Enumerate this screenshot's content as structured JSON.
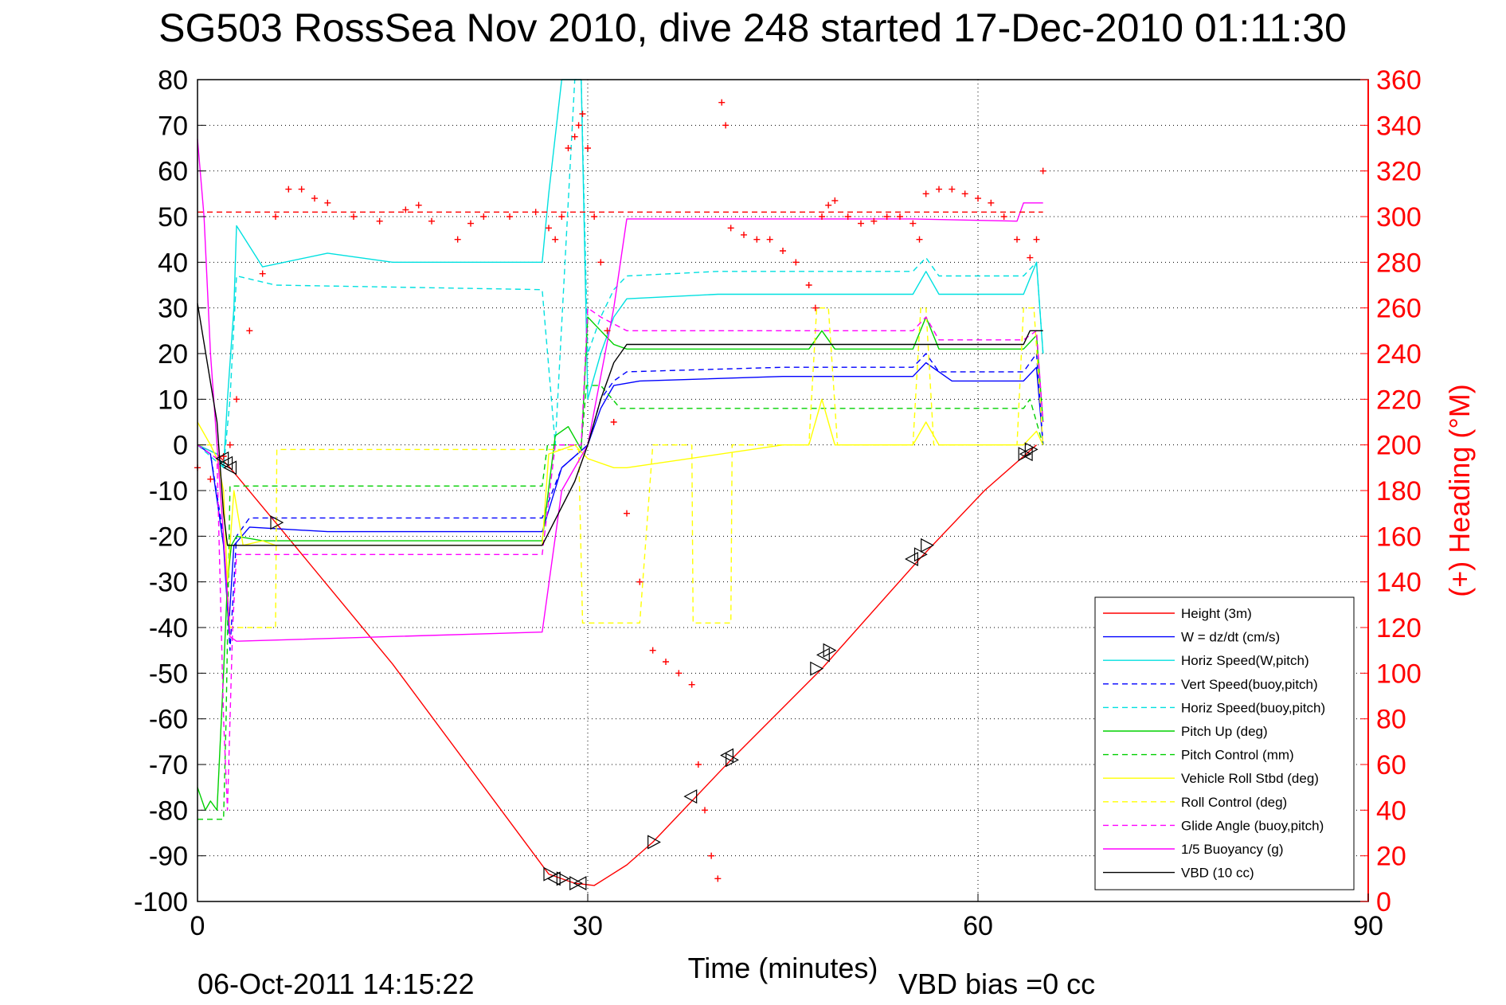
{
  "chart_data": {
    "type": "line",
    "title": "SG503 RossSea Nov 2010, dive 248 started 17-Dec-2010 01:11:30",
    "xlabel": "Time (minutes)",
    "ylabel": "",
    "y2label": "(+) Heading (°M)",
    "xlim": [
      0,
      90
    ],
    "ylim": [
      -100,
      80
    ],
    "y2lim": [
      0,
      360
    ],
    "xticks": [
      0,
      30,
      60,
      90
    ],
    "yticks": [
      80,
      70,
      60,
      50,
      40,
      30,
      20,
      10,
      0,
      -10,
      -20,
      -30,
      -40,
      -50,
      -60,
      -70,
      -80,
      -90,
      -100
    ],
    "y2ticks": [
      360,
      340,
      320,
      300,
      280,
      260,
      240,
      220,
      200,
      180,
      160,
      140,
      120,
      100,
      80,
      60,
      40,
      20,
      0
    ],
    "grid": true,
    "legend_position": "bottom-right",
    "footer_left": "06-Oct-2011 14:15:22",
    "footer_right": "VBD bias =0 cc",
    "series": [
      {
        "name": "Height (3m)",
        "color": "#ff0000",
        "style": "solid",
        "x": [
          0,
          1.5,
          2.5,
          6,
          15,
          27,
          29,
          30.5,
          33,
          35,
          41,
          48,
          55.5,
          60.5,
          63.5,
          64.5
        ],
        "y": [
          0,
          -2,
          -5,
          -17,
          -48,
          -94,
          -96,
          -96.5,
          -92,
          -87,
          -69,
          -49,
          -25,
          -10,
          -2.5,
          0
        ]
      },
      {
        "name": "W = dz/dt (cm/s)",
        "color": "#0000ff",
        "style": "solid",
        "x": [
          0,
          1,
          2,
          2.4,
          2.8,
          4,
          10,
          20,
          26.5,
          28,
          30,
          31,
          32,
          34,
          45,
          55,
          56,
          58,
          63.5,
          64.5,
          65
        ],
        "y": [
          0,
          -2,
          -22,
          -40,
          -22,
          -18,
          -19,
          -19,
          -19,
          -5,
          0,
          8,
          13,
          14,
          15,
          15,
          18,
          14,
          14,
          17,
          0
        ]
      },
      {
        "name": "Horiz Speed(W,pitch)",
        "color": "#00e0e0",
        "style": "solid",
        "x": [
          0,
          1.5,
          2,
          2.3,
          2.8,
          3,
          5,
          10,
          15,
          20,
          26.5,
          27,
          28,
          29,
          29.5,
          30,
          31,
          32,
          33,
          40,
          50,
          55,
          56,
          57,
          63.5,
          64.5,
          65
        ],
        "y": [
          0,
          -2,
          -5,
          10,
          30,
          48,
          39,
          42,
          40,
          40,
          40,
          55,
          80,
          80,
          80,
          10,
          20,
          28,
          32,
          33,
          33,
          33,
          38,
          33,
          33,
          40,
          20
        ]
      },
      {
        "name": "Vert Speed(buoy,pitch)",
        "color": "#0000ff",
        "style": "dashed",
        "x": [
          0,
          1,
          2,
          2.5,
          3,
          4,
          26.5,
          28,
          30,
          31,
          32,
          33,
          45,
          55,
          56,
          57,
          63.5,
          64.5,
          65
        ],
        "y": [
          0,
          -2,
          -20,
          -45,
          -20,
          -16,
          -16,
          -5,
          0,
          10,
          14,
          16,
          17,
          17,
          20,
          16,
          16,
          20,
          0
        ]
      },
      {
        "name": "Horiz Speed(buoy,pitch)",
        "color": "#00e0e0",
        "style": "dashed",
        "x": [
          0,
          2,
          2.5,
          3,
          6,
          26.5,
          27.5,
          29,
          29.5,
          30,
          31,
          32,
          33,
          40,
          55,
          56,
          57,
          63.5,
          64.5,
          65
        ],
        "y": [
          0,
          -5,
          10,
          37,
          35,
          34,
          0,
          80,
          80,
          20,
          28,
          34,
          37,
          38,
          38,
          41,
          37,
          37,
          40,
          20
        ]
      },
      {
        "name": "Pitch Up (deg)",
        "color": "#00d000",
        "style": "solid",
        "x": [
          0,
          0.6,
          1,
          1.5,
          2,
          2.3,
          2.6,
          3,
          5,
          26.5,
          27.5,
          28.5,
          29.5,
          30,
          31,
          32,
          33,
          40,
          47,
          48,
          49,
          55,
          56,
          57,
          63.5,
          64.5,
          65
        ],
        "y": [
          -75,
          -80,
          -78,
          -80,
          -50,
          -30,
          -22,
          -20,
          -21,
          -21,
          2,
          4,
          -1,
          28,
          25,
          22,
          21,
          21,
          21,
          25,
          21,
          21,
          28,
          21,
          21,
          24,
          5
        ]
      },
      {
        "name": "Pitch Control (mm)",
        "color": "#00d000",
        "style": "dashed",
        "x": [
          0,
          2,
          2.2,
          2.5,
          6,
          26.5,
          26.9,
          29.5,
          29.9,
          31,
          32.5,
          63.5,
          64,
          65
        ],
        "y": [
          -82,
          -82,
          -60,
          -9,
          -9,
          -9,
          0,
          0,
          13,
          13,
          8,
          8,
          10,
          0
        ]
      },
      {
        "name": "Vehicle Roll Stbd (deg)",
        "color": "#ffff00",
        "style": "solid",
        "x": [
          0,
          1,
          1.5,
          2,
          2.3,
          2.8,
          3.5,
          5,
          6,
          15,
          25,
          26.5,
          27,
          29,
          30,
          32,
          33,
          45,
          47,
          48,
          49,
          55,
          56,
          57,
          63.5,
          64.5,
          65
        ],
        "y": [
          5,
          0,
          -3,
          -10,
          -30,
          -10,
          -22,
          -21,
          -22,
          -22,
          -22,
          -22,
          -2,
          0,
          -3,
          -5,
          -5,
          0,
          0,
          10,
          0,
          0,
          5,
          0,
          0,
          3,
          0
        ]
      },
      {
        "name": "Roll Control (deg)",
        "color": "#ffff00",
        "style": "dashed",
        "x": [
          0,
          1.5,
          2,
          2.5,
          3,
          6,
          6.1,
          15,
          26,
          27,
          29.3,
          29.6,
          32,
          34,
          35,
          38,
          38.1,
          41,
          41.1,
          47,
          47.6,
          48.5,
          49.2,
          55,
          55.6,
          56,
          56.6,
          63,
          63.5,
          64.3,
          65
        ],
        "y": [
          0,
          0,
          -20,
          -40,
          -40,
          -40,
          -1,
          -1,
          -1,
          -1,
          -1,
          -39,
          -39,
          -39,
          0,
          0,
          -39,
          -39,
          0,
          0,
          30,
          30,
          0,
          0,
          30,
          30,
          0,
          0,
          30,
          30,
          0
        ]
      },
      {
        "name": "Glide Angle (buoy,pitch)",
        "color": "#ff00ff",
        "style": "dashed",
        "x": [
          0,
          1.5,
          2,
          2.3,
          2.7,
          3,
          5,
          26.5,
          27.5,
          29.5,
          30,
          31,
          33,
          40,
          55,
          56,
          57,
          63.5,
          64.5,
          65
        ],
        "y": [
          0,
          -3,
          -60,
          -80,
          -40,
          -24,
          -24,
          -24,
          0,
          0,
          30,
          28,
          25,
          25,
          25,
          28,
          23,
          23,
          25,
          5
        ]
      },
      {
        "name": "1/5 Buoyancy (g)",
        "color": "#ff00ff",
        "style": "solid",
        "x": [
          0,
          0.5,
          1,
          1.5,
          2,
          2.5,
          3,
          26.5,
          28,
          30,
          31,
          32,
          33,
          40,
          55,
          63,
          63.5,
          65
        ],
        "y": [
          67,
          50,
          20,
          0,
          -20,
          -42,
          -43,
          -41,
          -10,
          0,
          15,
          30,
          49.5,
          49.5,
          49.5,
          49,
          53,
          53
        ]
      },
      {
        "name": "VBD (10 cc)",
        "color": "#000000",
        "style": "solid",
        "x": [
          0,
          1.5,
          2,
          2.3,
          26.5,
          29,
          30,
          31,
          32,
          33,
          63.5,
          64,
          65
        ],
        "y": [
          31,
          5,
          -15,
          -22,
          -22,
          -8,
          0,
          10,
          18,
          22,
          22,
          25,
          25
        ]
      },
      {
        "name": "(+) Heading",
        "color": "#ff0000",
        "style": "markers",
        "axis": "right",
        "x": [
          0,
          1,
          2,
          2.5,
          3,
          4,
          5,
          6,
          7,
          8,
          9,
          10,
          12,
          14,
          16,
          17,
          18,
          20,
          21,
          22,
          24,
          26,
          27,
          27.5,
          28,
          28.5,
          29,
          29.3,
          29.6,
          30,
          30.5,
          31,
          31.5,
          32,
          33,
          34,
          35,
          36,
          37,
          38,
          38.5,
          39,
          39.5,
          40,
          40.3,
          40.6,
          41,
          42,
          43,
          44,
          45,
          46,
          47,
          47.5,
          48,
          48.5,
          49,
          50,
          51,
          52,
          53,
          54,
          55,
          55.5,
          56,
          57,
          58,
          59,
          60,
          61,
          62,
          63,
          64,
          64.5,
          65
        ],
        "y": [
          190,
          185,
          195,
          200,
          220,
          250,
          275,
          300,
          312,
          312,
          308,
          306,
          300,
          298,
          303,
          305,
          298,
          290,
          297,
          300,
          300,
          302,
          295,
          290,
          300,
          330,
          335,
          340,
          345,
          330,
          300,
          280,
          250,
          210,
          170,
          140,
          110,
          105,
          100,
          95,
          60,
          40,
          20,
          10,
          350,
          340,
          295,
          292,
          290,
          290,
          285,
          280,
          270,
          260,
          300,
          305,
          307,
          300,
          297,
          298,
          300,
          300,
          297,
          290,
          310,
          312,
          312,
          310,
          308,
          306,
          300,
          290,
          282,
          290,
          320
        ]
      },
      {
        "name": "Heading reference",
        "color": "#ff0000",
        "style": "dashed",
        "axis": "right",
        "x": [
          0,
          65
        ],
        "y": [
          302,
          302
        ]
      },
      {
        "name": "Timing markers (right)",
        "color": "#000000",
        "style": "tri-right",
        "x": [
          6,
          27,
          28,
          29,
          35,
          41,
          47.5,
          48.5,
          55.5,
          56,
          63.5,
          64
        ],
        "y": [
          -17,
          -94,
          -95,
          -96,
          -87,
          -69,
          -49,
          -45,
          -24,
          -22,
          -2,
          -1
        ]
      },
      {
        "name": "Timing markers (left)",
        "color": "#000000",
        "style": "tri-left",
        "x": [
          2,
          2.3,
          2.6,
          27.5,
          29.5,
          38,
          40.8,
          48.2,
          55,
          63.8
        ],
        "y": [
          -3,
          -4,
          -5,
          -95,
          -96,
          -77,
          -68,
          -46,
          -25,
          -2
        ]
      }
    ]
  }
}
